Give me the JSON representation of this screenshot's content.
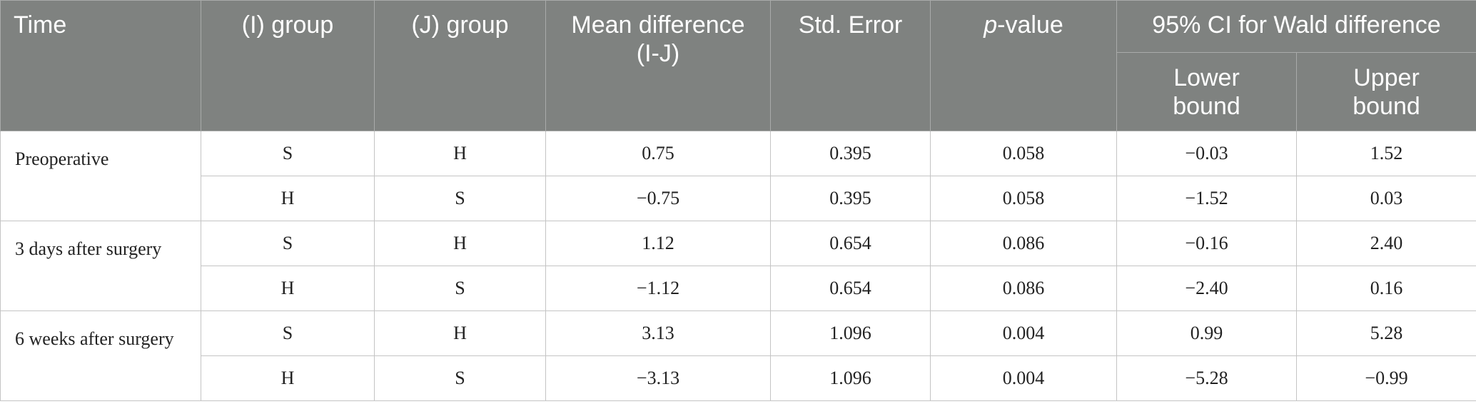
{
  "table": {
    "headers": [
      "Time",
      "(I) group",
      "(J) group",
      "Mean difference (I-J)",
      "Std. Error",
      "p-value",
      "95% CI for Wald difference"
    ],
    "subheaders": [
      "Lower bound",
      "Upper bound"
    ],
    "groups": [
      {
        "time": "Preoperative",
        "rows": [
          [
            "S",
            "H",
            "0.75",
            "0.395",
            "0.058",
            "−0.03",
            "1.52"
          ],
          [
            "H",
            "S",
            "−0.75",
            "0.395",
            "0.058",
            "−1.52",
            "0.03"
          ]
        ]
      },
      {
        "time": "3 days after surgery",
        "rows": [
          [
            "S",
            "H",
            "1.12",
            "0.654",
            "0.086",
            "−0.16",
            "2.40"
          ],
          [
            "H",
            "S",
            "−1.12",
            "0.654",
            "0.086",
            "−2.40",
            "0.16"
          ]
        ]
      },
      {
        "time": "6 weeks after surgery",
        "rows": [
          [
            "S",
            "H",
            "3.13",
            "1.096",
            "0.004",
            "0.99",
            "5.28"
          ],
          [
            "H",
            "S",
            "−3.13",
            "1.096",
            "0.004",
            "−5.28",
            "−0.99"
          ]
        ]
      }
    ]
  }
}
